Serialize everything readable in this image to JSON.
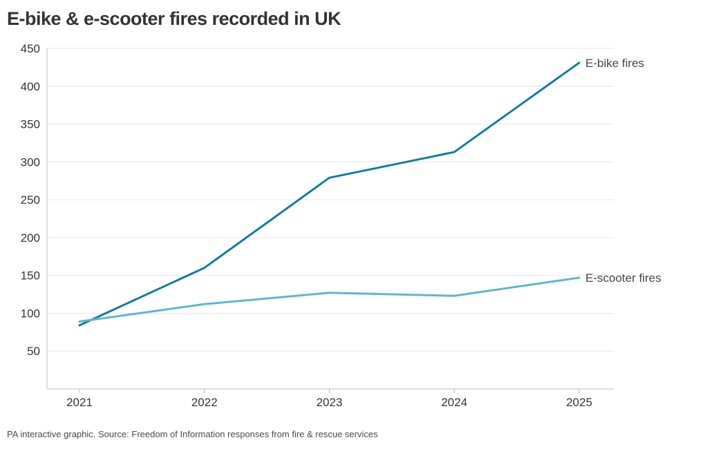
{
  "title": "E-bike & e-scooter fires recorded in UK",
  "footer": "PA interactive graphic. Source: Freedom of Information responses from fire & rescue services",
  "colors": {
    "ebike": "#137aa3",
    "escooter": "#60b5d0",
    "grid": "#e6e6e6",
    "axis": "#bdbdbd",
    "text": "#333333"
  },
  "chart_data": {
    "type": "line",
    "title": "E-bike & e-scooter fires recorded in UK",
    "xlabel": "",
    "ylabel": "",
    "x": [
      "2021",
      "2022",
      "2023",
      "2024",
      "2025"
    ],
    "ylim": [
      0,
      450
    ],
    "yticks": [
      50,
      100,
      150,
      200,
      250,
      300,
      350,
      400,
      450
    ],
    "grid": true,
    "series": [
      {
        "name": "E-bike fires",
        "color": "#137aa3",
        "values": [
          84,
          160,
          279,
          313,
          431
        ]
      },
      {
        "name": "E-scooter fires",
        "color": "#60b5d0",
        "values": [
          89,
          112,
          127,
          123,
          147
        ]
      }
    ]
  }
}
